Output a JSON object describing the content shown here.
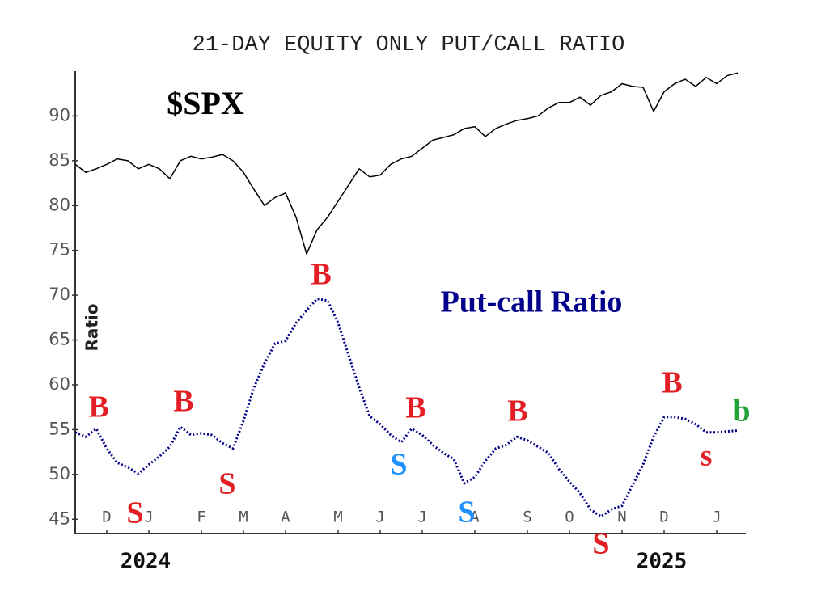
{
  "chart_data": {
    "type": "line",
    "title": "21-DAY EQUITY ONLY PUT/CALL RATIO",
    "y_label": "Ratio",
    "categories": [
      null,
      null,
      null,
      "D",
      null,
      null,
      null,
      "J",
      null,
      null,
      null,
      null,
      "F",
      null,
      null,
      null,
      "M",
      null,
      null,
      null,
      "A",
      null,
      null,
      null,
      null,
      "M",
      null,
      null,
      null,
      "J",
      null,
      null,
      null,
      "J",
      null,
      null,
      null,
      null,
      "A",
      null,
      null,
      null,
      null,
      "S",
      null,
      null,
      null,
      "O",
      null,
      null,
      null,
      null,
      "N",
      null,
      null,
      null,
      "D",
      null,
      null,
      null,
      null,
      "J",
      null,
      null
    ],
    "series": [
      {
        "name": "$SPX",
        "color": "#000000",
        "values": [
          84.6,
          83.7,
          84.1,
          84.6,
          85.2,
          85.0,
          84.1,
          84.6,
          84.1,
          83.0,
          85.0,
          85.5,
          85.2,
          85.4,
          85.7,
          85.0,
          83.7,
          81.8,
          80.0,
          80.9,
          81.4,
          78.7,
          74.6,
          77.3,
          78.7,
          80.5,
          82.3,
          84.1,
          83.2,
          83.4,
          84.6,
          85.2,
          85.5,
          86.4,
          87.3,
          87.6,
          87.9,
          88.6,
          88.8,
          87.7,
          88.6,
          89.1,
          89.5,
          89.7,
          90.0,
          90.9,
          91.5,
          91.5,
          92.1,
          91.2,
          92.3,
          92.7,
          93.6,
          93.3,
          93.2,
          90.5,
          92.7,
          93.6,
          94.1,
          93.3,
          94.3,
          93.6,
          94.5,
          94.8
        ]
      },
      {
        "name": "Put-call Ratio",
        "color": "#00008b",
        "values": [
          54.7,
          54.2,
          55.1,
          52.9,
          51.3,
          50.8,
          50.1,
          51.1,
          52.0,
          53.1,
          55.3,
          54.4,
          54.6,
          54.4,
          53.5,
          52.9,
          56.0,
          59.7,
          62.4,
          64.6,
          64.9,
          66.9,
          68.3,
          69.6,
          69.4,
          66.9,
          63.3,
          59.7,
          56.5,
          55.6,
          54.4,
          53.6,
          55.1,
          54.4,
          53.3,
          52.4,
          51.7,
          49.0,
          49.7,
          51.5,
          52.9,
          53.3,
          54.2,
          53.8,
          53.1,
          52.4,
          50.6,
          49.2,
          47.9,
          46.1,
          45.3,
          46.1,
          46.5,
          48.8,
          51.1,
          54.2,
          56.4,
          56.4,
          56.2,
          55.6,
          54.7,
          54.7,
          54.8,
          54.9
        ]
      }
    ],
    "ylim": [
      43.4,
      95
    ],
    "yticks": [
      45,
      50,
      55,
      60,
      65,
      70,
      75,
      80,
      85,
      90
    ],
    "year_labels": [
      "2024",
      "2025"
    ],
    "annotations": [
      {
        "text": "B",
        "color": "#e31e24"
      },
      {
        "text": "S",
        "color": "#e31e24"
      },
      {
        "text": "B",
        "color": "#e31e24"
      },
      {
        "text": "S",
        "color": "#e31e24"
      },
      {
        "text": "B",
        "color": "#e31e24"
      },
      {
        "text": "S",
        "color": "#1e90ff"
      },
      {
        "text": "B",
        "color": "#e31e24"
      },
      {
        "text": "S",
        "color": "#1e90ff"
      },
      {
        "text": "B",
        "color": "#e31e24"
      },
      {
        "text": "S",
        "color": "#e31e24"
      },
      {
        "text": "B",
        "color": "#e31e24"
      },
      {
        "text": "s",
        "color": "#e31e24"
      },
      {
        "text": "b",
        "color": "#22a33a"
      }
    ]
  }
}
